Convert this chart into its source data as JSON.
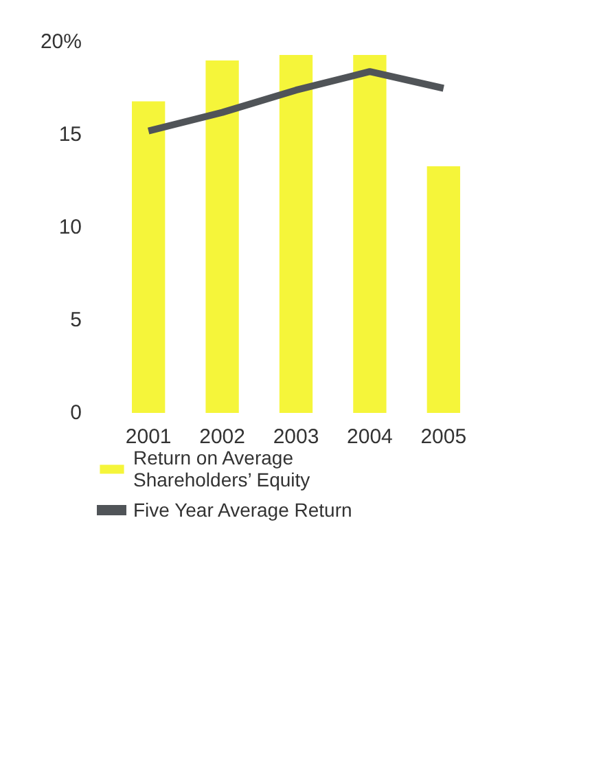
{
  "chart_data": {
    "type": "bar",
    "categories": [
      "2001",
      "2002",
      "2003",
      "2004",
      "2005"
    ],
    "series": [
      {
        "name": "Return on Average\nShareholders’ Equity",
        "type": "bar",
        "color": "#f5f53a",
        "values": [
          16.8,
          19.0,
          19.3,
          19.3,
          13.3
        ]
      },
      {
        "name": "Five Year Average Return",
        "type": "line",
        "color": "#505458",
        "values": [
          15.2,
          16.2,
          17.4,
          18.4,
          17.5
        ]
      }
    ],
    "ylim": [
      0,
      20
    ],
    "yticks": [
      0,
      5,
      10,
      15,
      {
        "value": 20,
        "label": "20%"
      }
    ],
    "grid": false,
    "legend": "bottom"
  }
}
